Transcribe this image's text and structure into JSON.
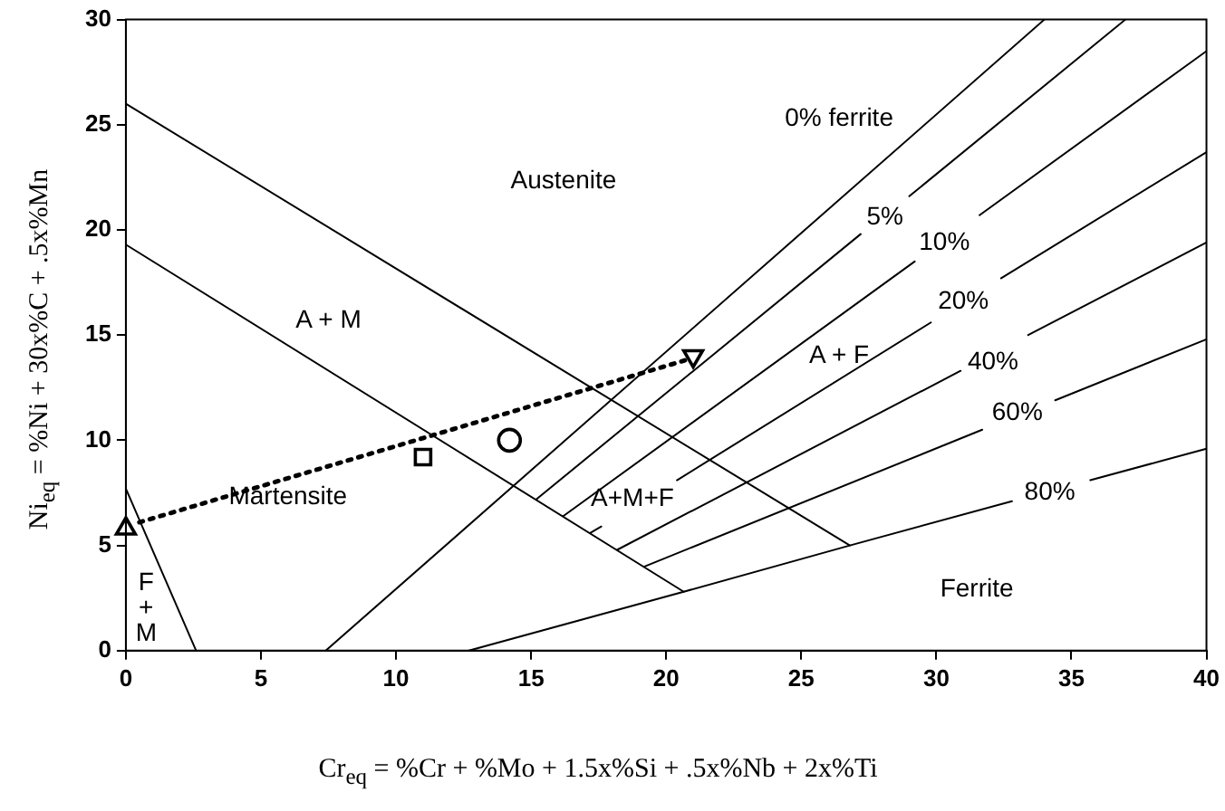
{
  "chart_data": {
    "type": "line",
    "xlabel": "Cr$_{eq}$ = %Cr + %Mo + 1.5x%Si + .5x%Nb + 2x%Ti",
    "ylabel": "Ni$_{eq}$ = %Ni + 30x%C + .5x%Mn",
    "xlim": [
      0,
      40
    ],
    "xticks": [
      0,
      5,
      10,
      15,
      20,
      25,
      30,
      35,
      40
    ],
    "ylim": [
      0,
      30
    ],
    "yticks": [
      0,
      5,
      10,
      15,
      20,
      25,
      30
    ],
    "grid": false,
    "legend": false,
    "marker": "none",
    "line_style": "solid",
    "series": [
      {
        "type": "line",
        "color": "#000000",
        "x": [
          0,
          26.8
        ],
        "values": [
          26,
          5.0
        ]
      },
      {
        "type": "line",
        "color": "#000000",
        "x": [
          0,
          20.65
        ],
        "values": [
          19.3,
          2.8
        ]
      },
      {
        "type": "line",
        "color": "#000000",
        "x": [
          0,
          2.6
        ],
        "values": [
          7.7,
          0
        ]
      },
      {
        "type": "line",
        "color": "#000000",
        "x": [
          7.4,
          34.0
        ],
        "values": [
          0,
          30
        ]
      },
      {
        "type": "line",
        "color": "#000000",
        "x": [
          15.2,
          27.2,
          28.1,
          29.0,
          37
        ],
        "values": [
          7.2,
          19.8,
          null,
          21.6,
          30
        ]
      },
      {
        "type": "line",
        "color": "#000000",
        "x": [
          16.2,
          29.2,
          30.4,
          31.6,
          40
        ],
        "values": [
          6.4,
          18.5,
          null,
          20.7,
          28.5
        ]
      },
      {
        "type": "line",
        "color": "#000000",
        "x": [
          17.2,
          17.6,
          19,
          20.4,
          29.8,
          31.1,
          32.4,
          40
        ],
        "values": [
          5.6,
          5.9,
          null,
          8.1,
          15.6,
          null,
          17.7,
          23.7
        ]
      },
      {
        "type": "line",
        "color": "#000000",
        "x": [
          18.2,
          30.9,
          32.1,
          33.4,
          40
        ],
        "values": [
          4.8,
          13.3,
          null,
          15.0,
          19.4
        ]
      },
      {
        "type": "line",
        "color": "#000000",
        "x": [
          19.2,
          31.7,
          33,
          34.4,
          40
        ],
        "values": [
          4.0,
          10.5,
          null,
          11.9,
          14.8
        ]
      },
      {
        "type": "line",
        "color": "#000000",
        "x": [
          12.7,
          20.65,
          26.8,
          32.8,
          34.2,
          35.7,
          40
        ],
        "values": [
          0,
          2.8,
          5.0,
          7.1,
          null,
          8.1,
          9.6
        ]
      },
      {
        "type": "line",
        "color": "#000000",
        "line_style": "dotted",
        "x": [
          0.5,
          20.7
        ],
        "values": [
          6.1,
          13.8
        ]
      },
      {
        "type": "scatter",
        "color": "#000000",
        "marker": "triangle",
        "x": [
          0
        ],
        "values": [
          5.8
        ]
      },
      {
        "type": "scatter",
        "color": "#000000",
        "marker": "square",
        "x": [
          11
        ],
        "values": [
          9.2
        ]
      },
      {
        "type": "scatter",
        "color": "#000000",
        "marker": "circle",
        "x": [
          14.2
        ],
        "values": [
          10
        ]
      },
      {
        "type": "scatter",
        "color": "#000000",
        "marker": "triangle-down",
        "x": [
          21
        ],
        "values": [
          14
        ]
      }
    ],
    "annotations": [
      "Austenite",
      "A + M",
      "Martensite",
      "F\n+\nM",
      "0% ferrite",
      "5%",
      "10%",
      "20%",
      "A + F",
      "40%",
      "60%",
      "80%",
      "A+M+F",
      "Ferrite"
    ]
  }
}
